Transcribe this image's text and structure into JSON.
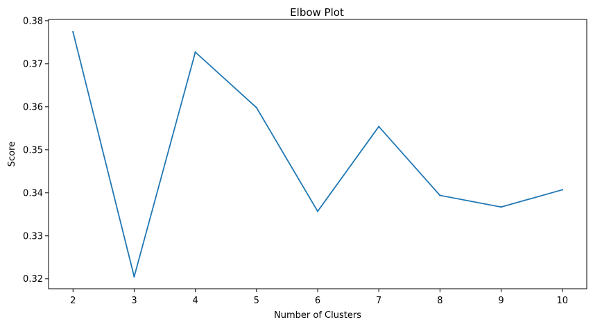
{
  "chart_data": {
    "type": "line",
    "title": "Elbow Plot",
    "xlabel": "Number of Clusters",
    "ylabel": "Score",
    "x": [
      2,
      3,
      4,
      5,
      6,
      7,
      8,
      9,
      10
    ],
    "series": [
      {
        "values": [
          0.3774,
          0.3205,
          0.3727,
          0.3598,
          0.3357,
          0.3554,
          0.3394,
          0.3367,
          0.3407
        ],
        "color": "#1f77b4"
      }
    ],
    "xlim": [
      1.6,
      10.4
    ],
    "ylim": [
      0.3177,
      0.3803
    ],
    "xticks": [
      "2",
      "3",
      "4",
      "5",
      "6",
      "7",
      "8",
      "9",
      "10"
    ],
    "yticks": [
      "0.32",
      "0.33",
      "0.34",
      "0.35",
      "0.36",
      "0.37",
      "0.38"
    ],
    "grid": false
  }
}
